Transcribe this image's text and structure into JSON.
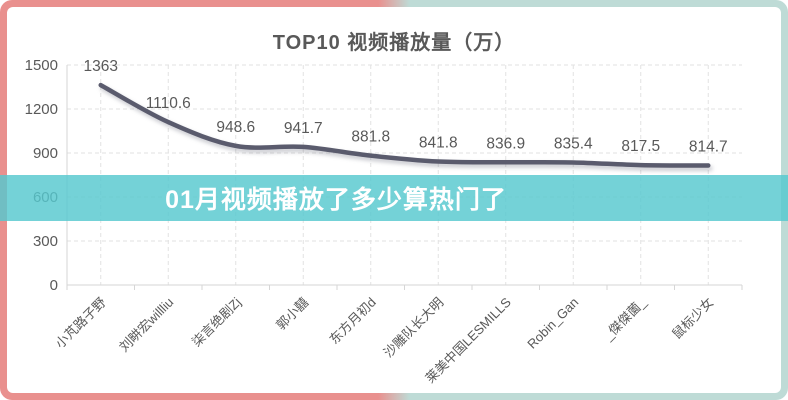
{
  "frame": {
    "border_left_color": "#e9908e",
    "border_right_color": "#bedbd6"
  },
  "chart_data": {
    "type": "line",
    "title": "TOP10 视频播放量（万）",
    "categories": [
      "小芃路子野",
      "刘畊宏willliu",
      "柒言绝剧Zj",
      "郭小囍",
      "东方月初d",
      "沙雕队长大明",
      "莱美中国LESMILLS",
      "Robin_Gan",
      "_傑傑薗_",
      "鼠标少女"
    ],
    "values": [
      1363,
      1110.6,
      948.6,
      941.7,
      881.8,
      841.8,
      836.9,
      835.4,
      817.5,
      814.7
    ],
    "ylim": [
      0,
      1500
    ],
    "yticks": [
      0,
      300,
      600,
      900,
      1200,
      1500
    ],
    "grid": true,
    "legend": "none",
    "xlabel": "",
    "ylabel": "",
    "line_color": "#5a5b6d",
    "value_label_color": "#595959",
    "axis_label_color": "#595959",
    "grid_color": "#e2e2e2",
    "axis_line_color": "#d6d6d6"
  },
  "overlay": {
    "text": "01月视频播放了多少算热门了",
    "band_color": "rgba(86,200,206,0.82)",
    "text_color": "#ffffff"
  }
}
